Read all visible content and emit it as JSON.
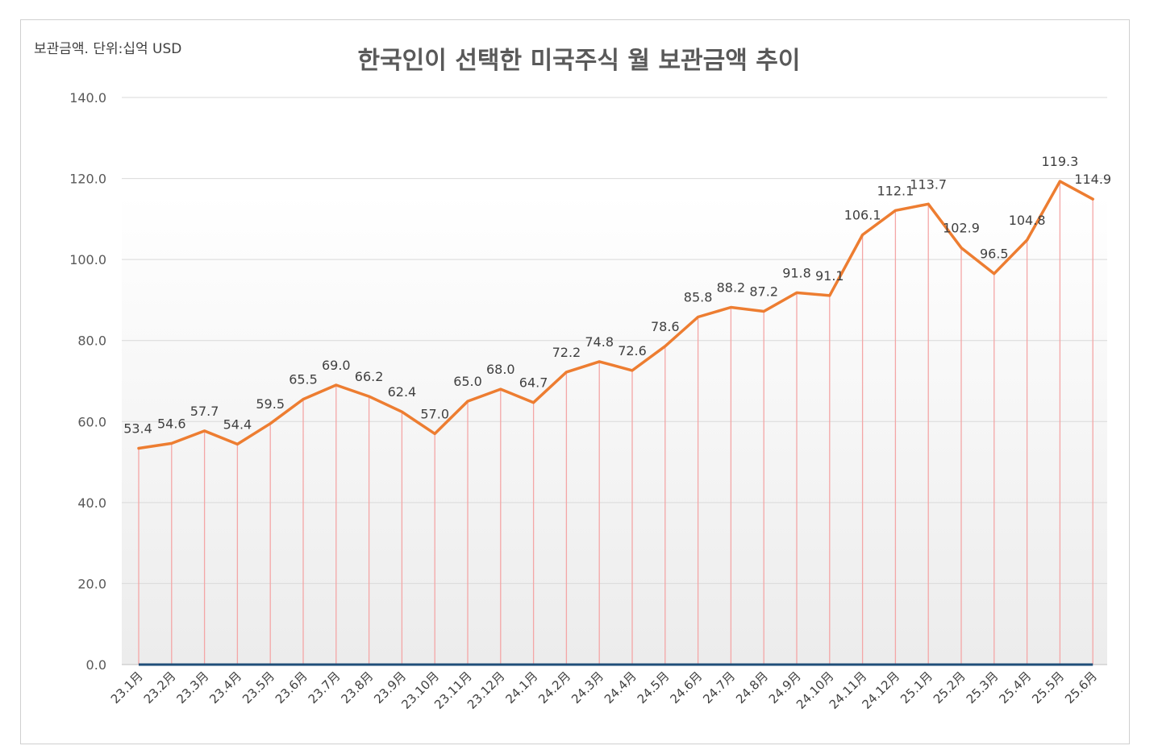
{
  "unit_label": "보관금액. 단위:십억 USD",
  "chart_data": {
    "type": "line",
    "title": "한국인이 선택한 미국주식 월 보관금액 추이",
    "xlabel": "",
    "ylabel": "",
    "ylim": [
      0,
      140
    ],
    "yticks": [
      "0.0",
      "20.0",
      "40.0",
      "60.0",
      "80.0",
      "100.0",
      "120.0",
      "140.0"
    ],
    "grid": true,
    "categories": [
      "23.1月",
      "23.2月",
      "23.3月",
      "23.4月",
      "23.5月",
      "23.6月",
      "23.7月",
      "23.8月",
      "23.9月",
      "23.10月",
      "23.11月",
      "23.12月",
      "24.1月",
      "24.2月",
      "24.3月",
      "24.4月",
      "24.5月",
      "24.6月",
      "24.7月",
      "24.8月",
      "24.9月",
      "24.10月",
      "24.11月",
      "24.12月",
      "25.1月",
      "25.2月",
      "25.3月",
      "25.4月",
      "25.5月",
      "25.6月"
    ],
    "values": [
      53.4,
      54.6,
      57.7,
      54.4,
      59.5,
      65.5,
      69.0,
      66.2,
      62.4,
      57.0,
      65.0,
      68.0,
      64.7,
      72.2,
      74.8,
      72.6,
      78.6,
      85.8,
      88.2,
      87.2,
      91.8,
      91.1,
      106.1,
      112.1,
      113.7,
      102.9,
      96.5,
      104.8,
      119.3,
      114.9
    ],
    "value_labels": [
      "53.4",
      "54.6",
      "57.7",
      "54.4",
      "59.5",
      "65.5",
      "69.0",
      "66.2",
      "62.4",
      "57.0",
      "65.0",
      "68.0",
      "64.7",
      "72.2",
      "74.8",
      "72.6",
      "78.6",
      "85.8",
      "88.2",
      "87.2",
      "91.8",
      "91.1",
      "106.1",
      "112.1",
      "113.7",
      "102.9",
      "96.5",
      "104.8",
      "119.3",
      "114.9"
    ],
    "colors": {
      "line": "#ED7D31",
      "drop_lines": "#F4A6A6",
      "baseline": "#1F4E79",
      "grid": "#D9D9D9"
    }
  }
}
